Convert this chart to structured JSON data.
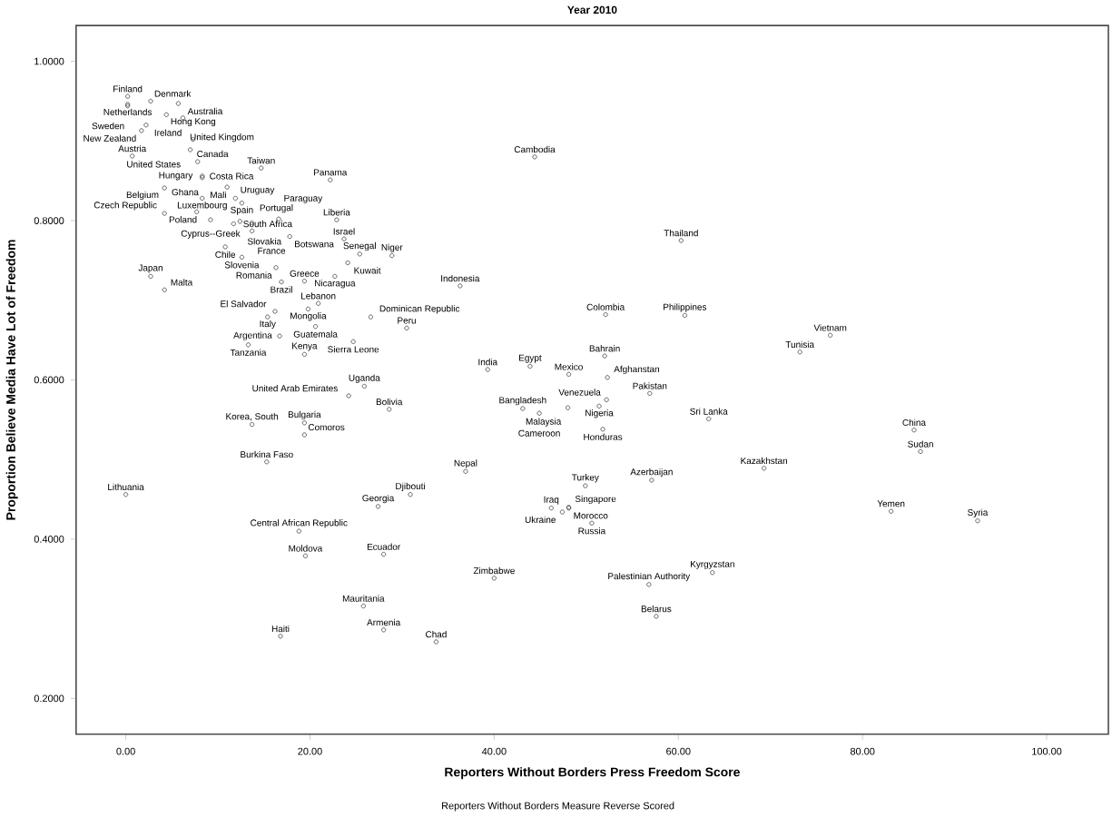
{
  "chart_data": {
    "type": "scatter",
    "title": "Year 2010",
    "xlabel": "Reporters Without Borders Press Freedom Score",
    "ylabel": "Proportion Believe Media Have Lot of Freedom",
    "color": "#404040",
    "marker": "circle",
    "xlim": [
      -5.4,
      106.7
    ],
    "ylim": [
      0.155,
      1.045
    ],
    "xticks": [
      {
        "value": 0,
        "label": "0.00"
      },
      {
        "value": 20,
        "label": "20.00"
      },
      {
        "value": 40,
        "label": "40.00"
      },
      {
        "value": 60,
        "label": "60.00"
      },
      {
        "value": 80,
        "label": "80.00"
      },
      {
        "value": 100,
        "label": "100.00"
      }
    ],
    "yticks": [
      {
        "value": 0.2,
        "label": "0.2000"
      },
      {
        "value": 0.4,
        "label": "0.4000"
      },
      {
        "value": 0.6,
        "label": "0.6000"
      },
      {
        "value": 0.8,
        "label": "0.8000"
      },
      {
        "value": 1.0,
        "label": "1.0000"
      }
    ],
    "x": [
      0.2,
      0.2,
      0.2,
      2.7,
      5.7,
      2.2,
      1.7,
      4.4,
      6.2,
      7.3,
      7.0,
      0.7,
      7.8,
      14.7,
      22.2,
      8.3,
      8.3,
      4.2,
      11.0,
      8.3,
      11.9,
      12.6,
      7.7,
      4.2,
      9.2,
      12.4,
      11.7,
      13.7,
      13.7,
      16.6,
      17.8,
      22.9,
      23.7,
      10.8,
      12.6,
      25.4,
      28.9,
      24.1,
      16.3,
      19.4,
      22.7,
      2.7,
      4.2,
      16.9,
      20.9,
      19.8,
      16.2,
      15.4,
      20.6,
      26.6,
      30.5,
      24.7,
      16.7,
      13.3,
      19.4,
      25.9,
      24.2,
      28.6,
      13.7,
      19.4,
      19.4,
      15.3,
      36.9,
      30.9,
      27.4,
      18.8,
      19.5,
      28.0,
      40.0,
      25.8,
      28.0,
      16.8,
      33.7,
      0.0,
      39.3,
      43.9,
      48.1,
      52.0,
      52.3,
      56.9,
      52.2,
      51.4,
      48.0,
      43.1,
      44.9,
      51.8,
      57.1,
      49.9,
      46.2,
      48.1,
      48.1,
      47.4,
      50.6,
      63.3,
      85.6,
      86.3,
      69.3,
      83.1,
      92.5,
      63.7,
      56.8,
      57.6,
      44.4,
      60.3,
      36.3,
      52.1,
      60.7,
      76.5,
      73.2
    ],
    "values": [
      0.956,
      0.946,
      0.944,
      0.95,
      0.947,
      0.92,
      0.913,
      0.933,
      0.929,
      0.902,
      0.889,
      0.881,
      0.874,
      0.866,
      0.851,
      0.856,
      0.854,
      0.841,
      0.842,
      0.828,
      0.828,
      0.822,
      0.811,
      0.809,
      0.801,
      0.799,
      0.796,
      0.797,
      0.787,
      0.802,
      0.78,
      0.801,
      0.777,
      0.767,
      0.754,
      0.758,
      0.756,
      0.747,
      0.741,
      0.724,
      0.73,
      0.73,
      0.713,
      0.723,
      0.696,
      0.689,
      0.686,
      0.679,
      0.667,
      0.679,
      0.665,
      0.648,
      0.655,
      0.644,
      0.632,
      0.592,
      0.58,
      0.563,
      0.544,
      0.546,
      0.531,
      0.497,
      0.485,
      0.456,
      0.441,
      0.41,
      0.379,
      0.381,
      0.351,
      0.316,
      0.286,
      0.278,
      0.271,
      0.456,
      0.613,
      0.617,
      0.607,
      0.63,
      0.603,
      0.583,
      0.575,
      0.567,
      0.565,
      0.564,
      0.558,
      0.538,
      0.474,
      0.467,
      0.439,
      0.44,
      0.439,
      0.434,
      0.42,
      0.551,
      0.537,
      0.51,
      0.489,
      0.435,
      0.423,
      0.358,
      0.343,
      0.303,
      0.88,
      0.775,
      0.718,
      0.682,
      0.681,
      0.656,
      0.635
    ],
    "annotations": [
      {
        "text": "Finland",
        "x": 0.2,
        "y": 0.956
      },
      {
        "text": "Netherlands",
        "x": 0.2,
        "y": 0.946
      },
      {
        "text": "Sweden",
        "x": 0.2,
        "y": 0.944
      },
      {
        "text": "Denmark",
        "x": 2.7,
        "y": 0.95
      },
      {
        "text": "Australia",
        "x": 5.7,
        "y": 0.947
      },
      {
        "text": "Ireland",
        "x": 2.2,
        "y": 0.92
      },
      {
        "text": "New Zealand",
        "x": 1.7,
        "y": 0.913
      },
      {
        "text": "Hong Kong",
        "x": 4.4,
        "y": 0.933
      },
      {
        "text": "United Kingdom",
        "x": 6.2,
        "y": 0.929
      },
      {
        "text": "Canada",
        "x": 7.3,
        "y": 0.902
      },
      {
        "text": "United States",
        "x": 7.0,
        "y": 0.889
      },
      {
        "text": "Austria",
        "x": 0.7,
        "y": 0.881
      },
      {
        "text": "Hungary",
        "x": 7.8,
        "y": 0.874
      },
      {
        "text": "Taiwan",
        "x": 14.7,
        "y": 0.866
      },
      {
        "text": "Panama",
        "x": 22.2,
        "y": 0.851
      },
      {
        "text": "Costa Rica",
        "x": 8.3,
        "y": 0.856
      },
      {
        "text": "Ghana",
        "x": 8.3,
        "y": 0.854
      },
      {
        "text": "Belgium",
        "x": 4.2,
        "y": 0.841
      },
      {
        "text": "Mali",
        "x": 11.0,
        "y": 0.842
      },
      {
        "text": "Luxembourg",
        "x": 8.3,
        "y": 0.828
      },
      {
        "text": "Uruguay",
        "x": 11.9,
        "y": 0.828
      },
      {
        "text": "Spain",
        "x": 12.6,
        "y": 0.822
      },
      {
        "text": "Poland",
        "x": 7.7,
        "y": 0.811
      },
      {
        "text": "Czech Republic",
        "x": 4.2,
        "y": 0.809
      },
      {
        "text": "Cyprus--Greek",
        "x": 9.2,
        "y": 0.801
      },
      {
        "text": "Slovakia",
        "x": 12.4,
        "y": 0.799
      },
      {
        "text": "South Africa",
        "x": 11.7,
        "y": 0.796
      },
      {
        "text": "Portugal",
        "x": 13.7,
        "y": 0.797
      },
      {
        "text": "France",
        "x": 13.7,
        "y": 0.787
      },
      {
        "text": "Paraguay",
        "x": 16.6,
        "y": 0.802
      },
      {
        "text": "Botswana",
        "x": 17.8,
        "y": 0.78
      },
      {
        "text": "Liberia",
        "x": 22.9,
        "y": 0.801
      },
      {
        "text": "Israel",
        "x": 23.7,
        "y": 0.777
      },
      {
        "text": "Chile",
        "x": 10.8,
        "y": 0.767
      },
      {
        "text": "Slovenia",
        "x": 12.6,
        "y": 0.754
      },
      {
        "text": "Senegal",
        "x": 25.4,
        "y": 0.758
      },
      {
        "text": "Niger",
        "x": 28.9,
        "y": 0.756
      },
      {
        "text": "Kuwait",
        "x": 24.1,
        "y": 0.747
      },
      {
        "text": "Romania",
        "x": 16.3,
        "y": 0.741
      },
      {
        "text": "Greece",
        "x": 19.4,
        "y": 0.724
      },
      {
        "text": "Nicaragua",
        "x": 22.7,
        "y": 0.73
      },
      {
        "text": "Japan",
        "x": 2.7,
        "y": 0.73
      },
      {
        "text": "Malta",
        "x": 4.2,
        "y": 0.713
      },
      {
        "text": "Brazil",
        "x": 16.9,
        "y": 0.723
      },
      {
        "text": "Lebanon",
        "x": 20.9,
        "y": 0.696
      },
      {
        "text": "Mongolia",
        "x": 19.8,
        "y": 0.689
      },
      {
        "text": "El Salvador",
        "x": 16.2,
        "y": 0.686
      },
      {
        "text": "Italy",
        "x": 15.4,
        "y": 0.679
      },
      {
        "text": "Guatemala",
        "x": 20.6,
        "y": 0.667
      },
      {
        "text": "Dominican Republic",
        "x": 26.6,
        "y": 0.679
      },
      {
        "text": "Peru",
        "x": 30.5,
        "y": 0.665
      },
      {
        "text": "Sierra Leone",
        "x": 24.7,
        "y": 0.648
      },
      {
        "text": "Argentina",
        "x": 16.7,
        "y": 0.655
      },
      {
        "text": "Tanzania",
        "x": 13.3,
        "y": 0.644
      },
      {
        "text": "Kenya",
        "x": 19.4,
        "y": 0.632
      },
      {
        "text": "Uganda",
        "x": 25.9,
        "y": 0.592
      },
      {
        "text": "United Arab Emirates",
        "x": 24.2,
        "y": 0.58
      },
      {
        "text": "Bolivia",
        "x": 28.6,
        "y": 0.563
      },
      {
        "text": "Korea, South",
        "x": 13.7,
        "y": 0.544
      },
      {
        "text": "Bulgaria",
        "x": 19.4,
        "y": 0.546
      },
      {
        "text": "Comoros",
        "x": 19.4,
        "y": 0.531
      },
      {
        "text": "Burkina Faso",
        "x": 15.3,
        "y": 0.497
      },
      {
        "text": "Nepal",
        "x": 36.9,
        "y": 0.485
      },
      {
        "text": "Djibouti",
        "x": 30.9,
        "y": 0.456
      },
      {
        "text": "Georgia",
        "x": 27.4,
        "y": 0.441
      },
      {
        "text": "Central African Republic",
        "x": 18.8,
        "y": 0.41
      },
      {
        "text": "Moldova",
        "x": 19.5,
        "y": 0.379
      },
      {
        "text": "Ecuador",
        "x": 28.0,
        "y": 0.381
      },
      {
        "text": "Zimbabwe",
        "x": 40.0,
        "y": 0.351
      },
      {
        "text": "Mauritania",
        "x": 25.8,
        "y": 0.316
      },
      {
        "text": "Armenia",
        "x": 28.0,
        "y": 0.286
      },
      {
        "text": "Haiti",
        "x": 16.8,
        "y": 0.278
      },
      {
        "text": "Chad",
        "x": 33.7,
        "y": 0.271
      },
      {
        "text": "Lithuania",
        "x": 0.0,
        "y": 0.456
      },
      {
        "text": "India",
        "x": 39.3,
        "y": 0.613
      },
      {
        "text": "Egypt",
        "x": 43.9,
        "y": 0.617
      },
      {
        "text": "Mexico",
        "x": 48.1,
        "y": 0.607
      },
      {
        "text": "Bahrain",
        "x": 52.0,
        "y": 0.63
      },
      {
        "text": "Afghanstan",
        "x": 52.3,
        "y": 0.603
      },
      {
        "text": "Pakistan",
        "x": 56.9,
        "y": 0.583
      },
      {
        "text": "Venezuela",
        "x": 52.2,
        "y": 0.575
      },
      {
        "text": "Nigeria",
        "x": 51.4,
        "y": 0.567
      },
      {
        "text": "Malaysia",
        "x": 48.0,
        "y": 0.565
      },
      {
        "text": "Bangladesh",
        "x": 43.1,
        "y": 0.564
      },
      {
        "text": "Cameroon",
        "x": 44.9,
        "y": 0.558
      },
      {
        "text": "Honduras",
        "x": 51.8,
        "y": 0.538
      },
      {
        "text": "Azerbaijan",
        "x": 57.1,
        "y": 0.474
      },
      {
        "text": "Turkey",
        "x": 49.9,
        "y": 0.467
      },
      {
        "text": "Iraq",
        "x": 46.2,
        "y": 0.439
      },
      {
        "text": "Singapore",
        "x": 48.1,
        "y": 0.44
      },
      {
        "text": "Morocco",
        "x": 48.1,
        "y": 0.439
      },
      {
        "text": "Ukraine",
        "x": 47.4,
        "y": 0.434
      },
      {
        "text": "Russia",
        "x": 50.6,
        "y": 0.42
      },
      {
        "text": "Sri Lanka",
        "x": 63.3,
        "y": 0.551
      },
      {
        "text": "China",
        "x": 85.6,
        "y": 0.537
      },
      {
        "text": "Sudan",
        "x": 86.3,
        "y": 0.51
      },
      {
        "text": "Kazakhstan",
        "x": 69.3,
        "y": 0.489
      },
      {
        "text": "Yemen",
        "x": 83.1,
        "y": 0.435
      },
      {
        "text": "Syria",
        "x": 92.5,
        "y": 0.423
      },
      {
        "text": "Kyrgyzstan",
        "x": 63.7,
        "y": 0.358
      },
      {
        "text": "Palestinian Authority",
        "x": 56.8,
        "y": 0.343
      },
      {
        "text": "Belarus",
        "x": 57.6,
        "y": 0.303
      },
      {
        "text": "Cambodia",
        "x": 44.4,
        "y": 0.88
      },
      {
        "text": "Thailand",
        "x": 60.3,
        "y": 0.775
      },
      {
        "text": "Indonesia",
        "x": 36.3,
        "y": 0.718
      },
      {
        "text": "Colombia",
        "x": 52.1,
        "y": 0.682
      },
      {
        "text": "Philippines",
        "x": 60.7,
        "y": 0.681
      },
      {
        "text": "Vietnam",
        "x": 76.5,
        "y": 0.656
      },
      {
        "text": "Tunisia",
        "x": 73.2,
        "y": 0.635
      },
      "Reporters Without Borders Measure Reverse Scored"
    ]
  }
}
